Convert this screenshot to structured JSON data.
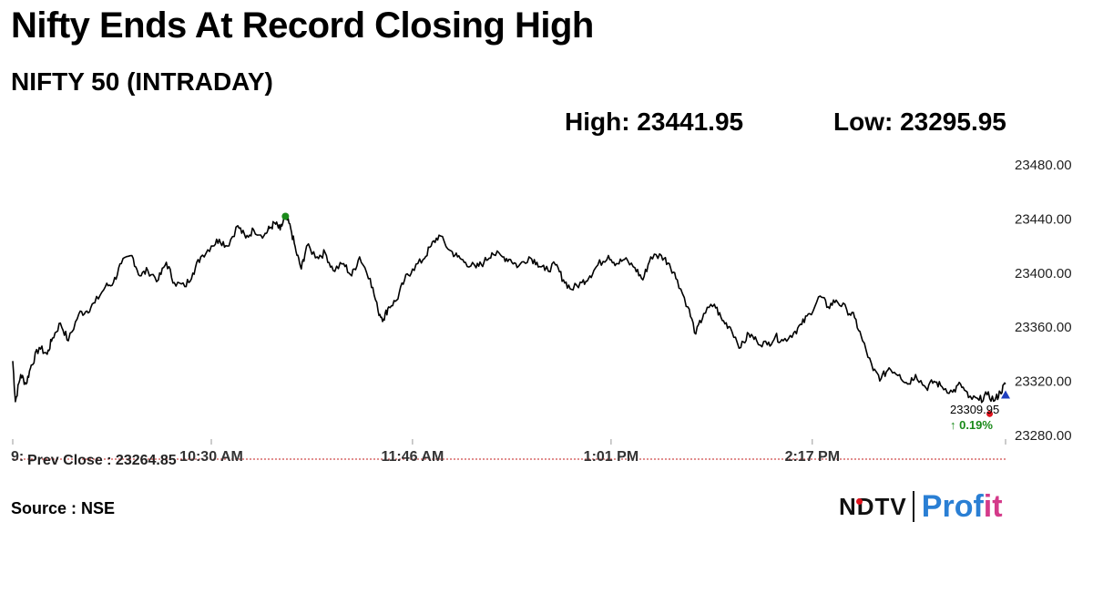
{
  "header": {
    "title": "Nifty Ends At Record Closing High",
    "subtitle": "NIFTY 50 (INTRADAY)",
    "high_label": "High: 23441.95",
    "low_label": "Low: 23295.95"
  },
  "footer": {
    "source": "Source : NSE",
    "logo_ndtv": "NDTV",
    "logo_profit_a": "Prof",
    "logo_profit_b": "it"
  },
  "colors": {
    "line": "#000000",
    "high_marker": "#1a8a1a",
    "low_marker": "#e0141e",
    "last_marker": "#1f3fbf",
    "change_text": "#1a8a1a",
    "prev_close_line": "#d04a4a"
  },
  "chart_data": {
    "type": "line",
    "title": "NIFTY 50 (INTRADAY)",
    "ylim": [
      23280,
      23480
    ],
    "y_ticks": [
      "23480.00",
      "23440.00",
      "23400.00",
      "23360.00",
      "23320.00",
      "23280.00"
    ],
    "x_tick_labels": [
      "9:",
      "10:30 AM",
      "11:46 AM",
      "1:01 PM",
      "2:17 PM"
    ],
    "x_tick_minutes": [
      555,
      630,
      706,
      781,
      857
    ],
    "x_range_minutes": [
      555,
      930
    ],
    "grid": false,
    "prev_close": 23264.85,
    "prev_close_label": "Prev Close : 23264.85",
    "last_value_label": "23309.95",
    "change_label": "↑ 0.19%",
    "high": {
      "minute": 658,
      "value": 23441.95
    },
    "low": {
      "minute": 924,
      "value": 23295.95
    },
    "series": [
      {
        "x": [
          555,
          556,
          558,
          560,
          562,
          565,
          568,
          570,
          573,
          576,
          580,
          583,
          586,
          590,
          593,
          596,
          600,
          603,
          606,
          610,
          613,
          616,
          620,
          623,
          626,
          630,
          633,
          636,
          640,
          643,
          646,
          650,
          652,
          654,
          656,
          658,
          660,
          662,
          664,
          666,
          670,
          673,
          676,
          680,
          683,
          686,
          690,
          693,
          695,
          697,
          700,
          703,
          706,
          710,
          713,
          716,
          720,
          723,
          726,
          730,
          733,
          736,
          740,
          743,
          746,
          750,
          753,
          756,
          760,
          763,
          766,
          770,
          773,
          776,
          780,
          783,
          786,
          790,
          793,
          796,
          800,
          803,
          806,
          810,
          813,
          816,
          820,
          823,
          826,
          830,
          833,
          836,
          840,
          843,
          846,
          850,
          853,
          856,
          860,
          863,
          866,
          870,
          873,
          876,
          880,
          883,
          886,
          890,
          893,
          896,
          900,
          903,
          906,
          910,
          913,
          916,
          920,
          923,
          926,
          928,
          930
        ],
        "y": [
          23335,
          23305,
          23325,
          23318,
          23332,
          23345,
          23340,
          23352,
          23363,
          23350,
          23370,
          23372,
          23378,
          23390,
          23393,
          23407,
          23413,
          23398,
          23402,
          23395,
          23408,
          23393,
          23390,
          23400,
          23412,
          23420,
          23425,
          23420,
          23435,
          23426,
          23432,
          23428,
          23433,
          23437,
          23432,
          23442,
          23433,
          23416,
          23403,
          23420,
          23412,
          23415,
          23402,
          23407,
          23398,
          23412,
          23396,
          23372,
          23366,
          23375,
          23380,
          23395,
          23403,
          23410,
          23420,
          23428,
          23417,
          23412,
          23408,
          23404,
          23408,
          23415,
          23412,
          23410,
          23405,
          23412,
          23408,
          23402,
          23406,
          23395,
          23388,
          23393,
          23398,
          23406,
          23413,
          23407,
          23410,
          23404,
          23395,
          23412,
          23413,
          23407,
          23395,
          23375,
          23355,
          23370,
          23377,
          23365,
          23360,
          23345,
          23355,
          23350,
          23347,
          23353,
          23350,
          23356,
          23362,
          23370,
          23383,
          23375,
          23380,
          23373,
          23367,
          23350,
          23328,
          23322,
          23330,
          23325,
          23318,
          23325,
          23315,
          23320,
          23316,
          23312,
          23318,
          23308,
          23306,
          23310,
          23306,
          23312,
          23318
        ]
      }
    ]
  }
}
